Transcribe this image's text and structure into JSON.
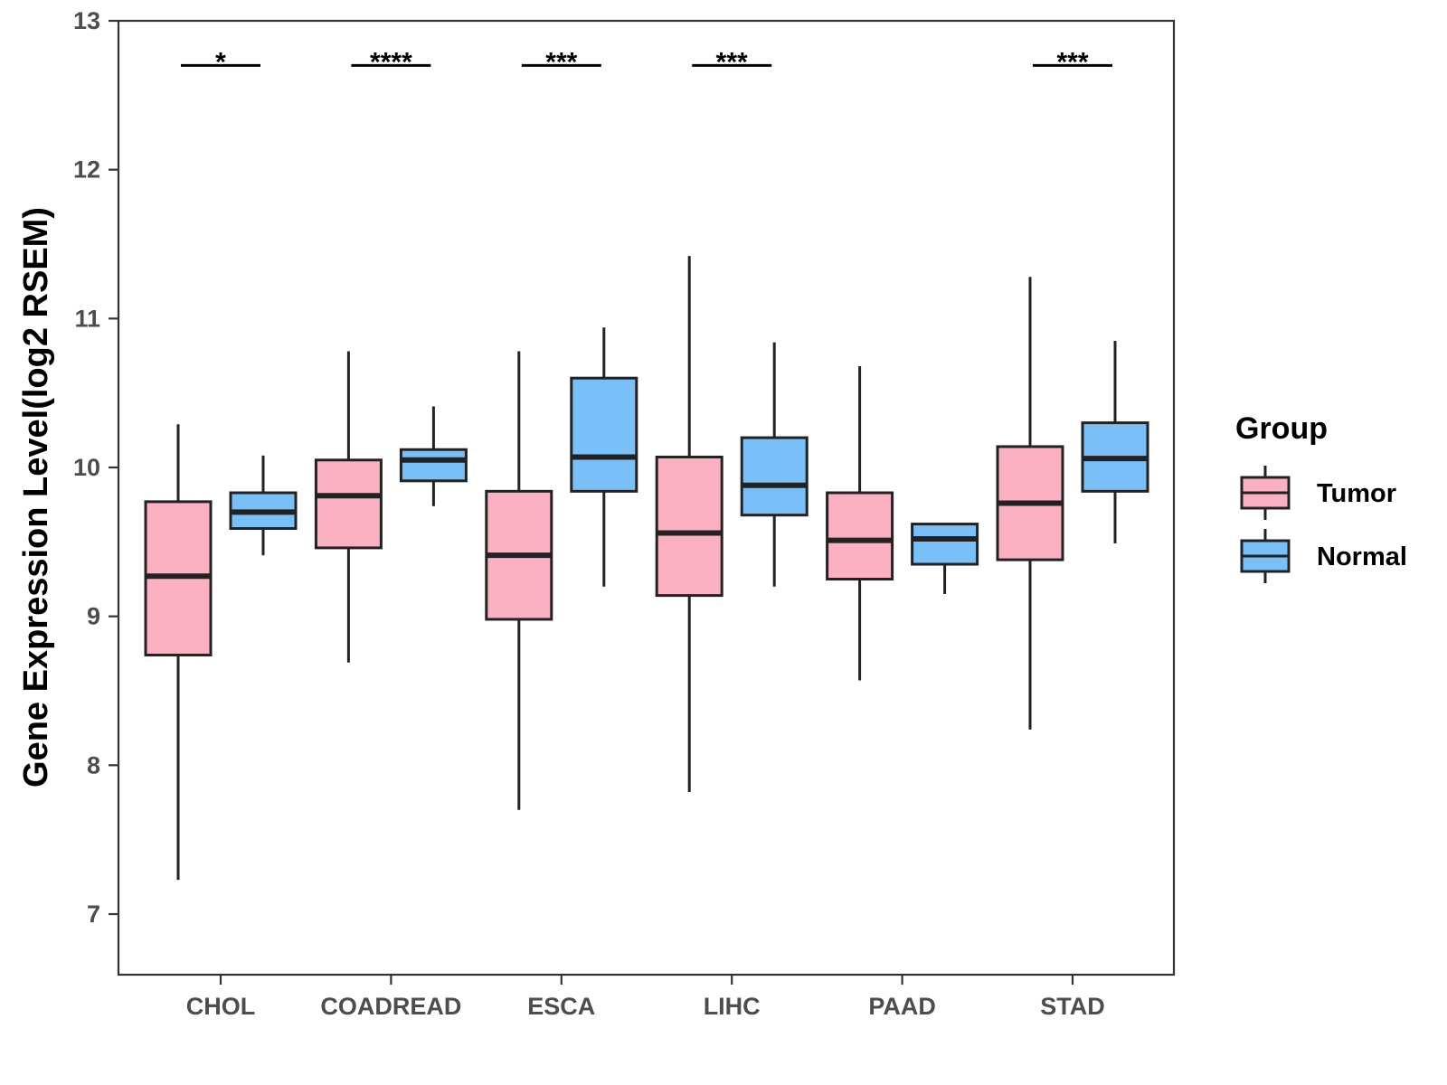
{
  "chart_data": {
    "type": "boxplot",
    "title": "",
    "xlabel": "",
    "ylabel": "Gene Expression Level(log2 RSEM)",
    "ylim": [
      6.6,
      13
    ],
    "yticks": [
      7,
      8,
      9,
      10,
      11,
      12,
      13
    ],
    "categories": [
      "CHOL",
      "COADREAD",
      "ESCA",
      "LIHC",
      "PAAD",
      "STAD"
    ],
    "grid": false,
    "legend": {
      "title": "Group",
      "position": "right",
      "entries": [
        {
          "name": "Tumor",
          "color": "#FBB1C2"
        },
        {
          "name": "Normal",
          "color": "#78C0F7"
        }
      ]
    },
    "series": [
      {
        "name": "Tumor",
        "color": "#FBB1C2",
        "boxes": [
          {
            "min": 7.23,
            "q1": 8.74,
            "median": 9.27,
            "q3": 9.77,
            "max": 10.29
          },
          {
            "min": 8.69,
            "q1": 9.46,
            "median": 9.81,
            "q3": 10.05,
            "max": 10.78
          },
          {
            "min": 7.7,
            "q1": 8.98,
            "median": 9.41,
            "q3": 9.84,
            "max": 10.78
          },
          {
            "min": 7.82,
            "q1": 9.14,
            "median": 9.56,
            "q3": 10.07,
            "max": 11.42
          },
          {
            "min": 8.57,
            "q1": 9.25,
            "median": 9.51,
            "q3": 9.83,
            "max": 10.68
          },
          {
            "min": 8.24,
            "q1": 9.38,
            "median": 9.76,
            "q3": 10.14,
            "max": 11.28
          }
        ]
      },
      {
        "name": "Normal",
        "color": "#78C0F7",
        "boxes": [
          {
            "min": 9.41,
            "q1": 9.59,
            "median": 9.7,
            "q3": 9.83,
            "max": 10.08
          },
          {
            "min": 9.74,
            "q1": 9.91,
            "median": 10.05,
            "q3": 10.12,
            "max": 10.41
          },
          {
            "min": 9.2,
            "q1": 9.84,
            "median": 10.07,
            "q3": 10.6,
            "max": 10.94
          },
          {
            "min": 9.2,
            "q1": 9.68,
            "median": 9.88,
            "q3": 10.2,
            "max": 10.84
          },
          {
            "min": 9.15,
            "q1": 9.35,
            "median": 9.52,
            "q3": 9.62,
            "max": 9.62
          },
          {
            "min": 9.49,
            "q1": 9.84,
            "median": 10.06,
            "q3": 10.3,
            "max": 10.85
          }
        ]
      }
    ],
    "significance": [
      {
        "category": "CHOL",
        "label": "*",
        "y": 12.7
      },
      {
        "category": "COADREAD",
        "label": "****",
        "y": 12.7
      },
      {
        "category": "ESCA",
        "label": "***",
        "y": 12.7
      },
      {
        "category": "LIHC",
        "label": "***",
        "y": 12.7
      },
      {
        "category": "STAD",
        "label": "***",
        "y": 12.7
      }
    ]
  }
}
